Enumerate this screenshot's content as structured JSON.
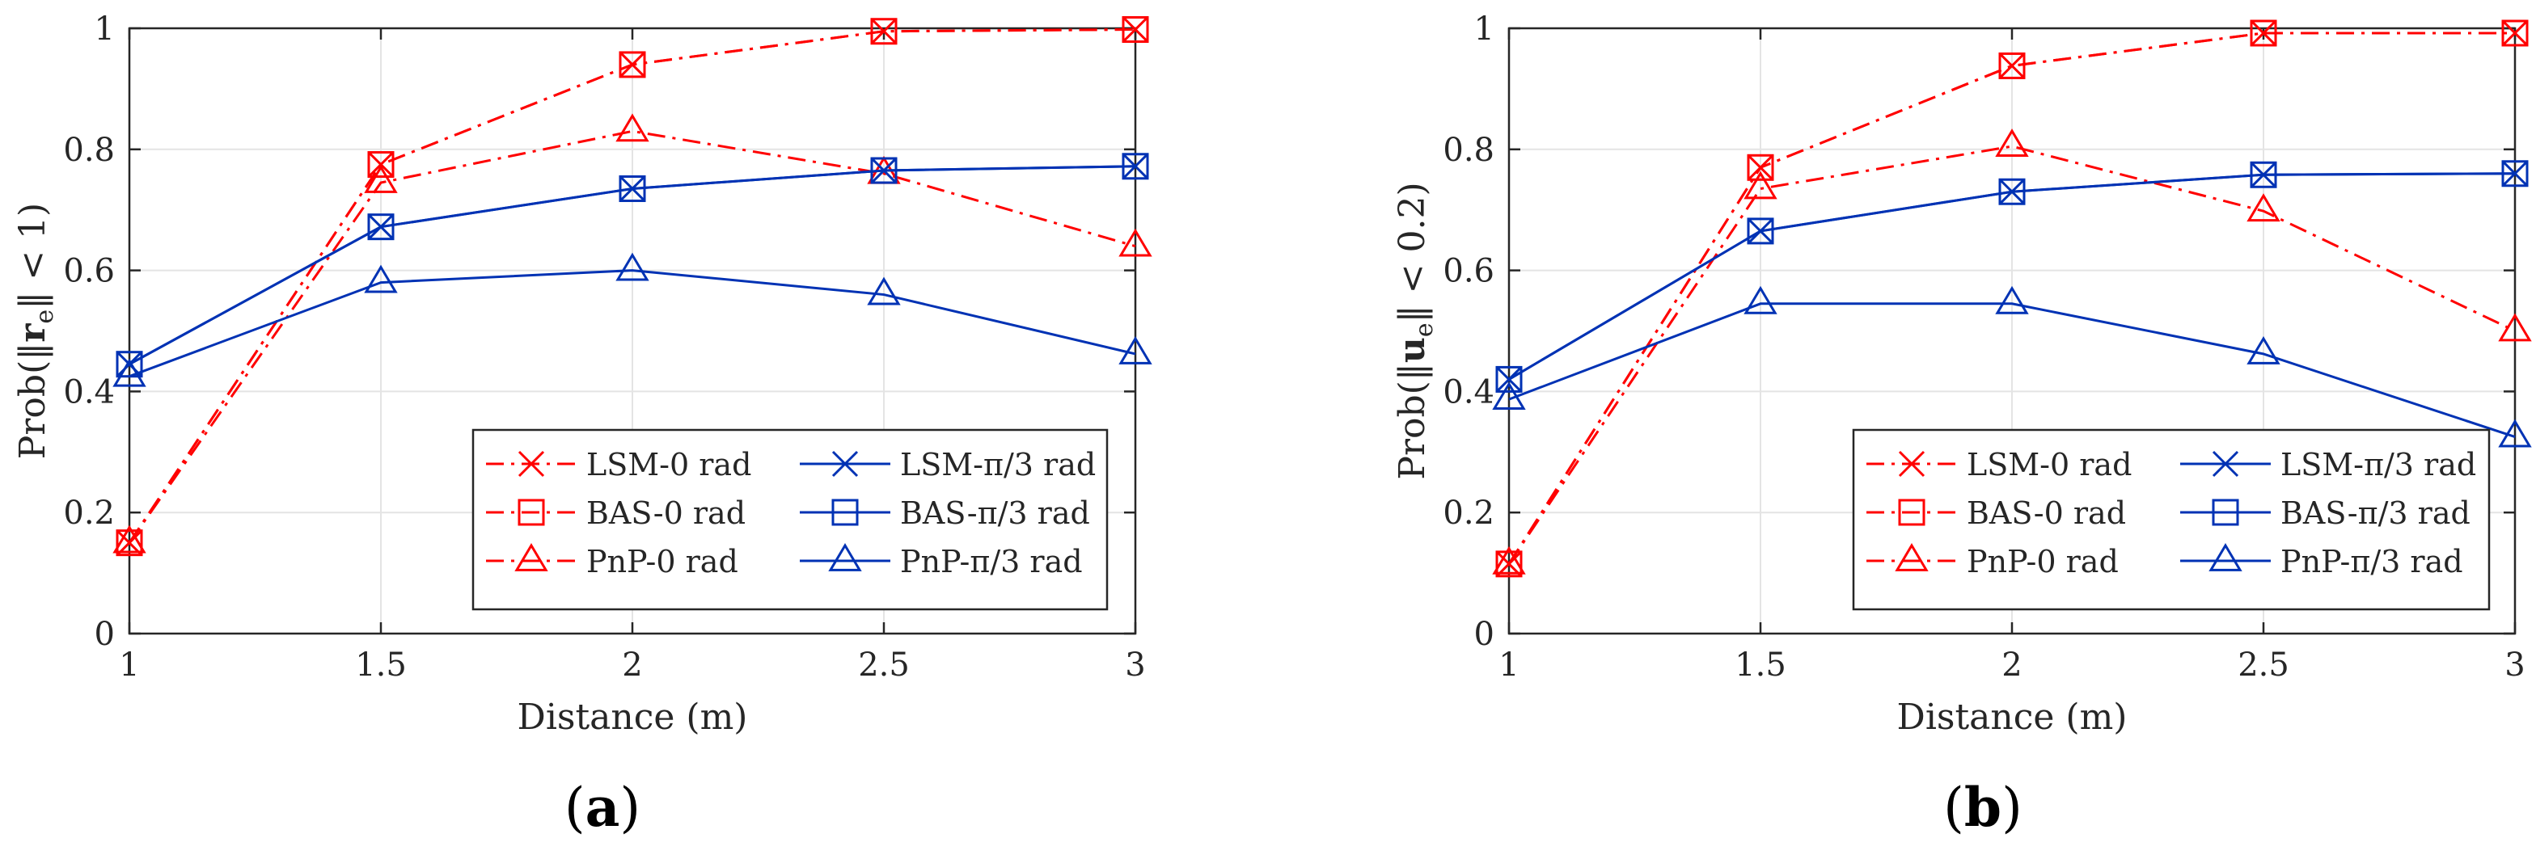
{
  "chart_data": [
    {
      "type": "line",
      "panel_label": "a",
      "title": "",
      "xlabel": "Distance (m)",
      "ylabel": "Prob(‖r_e‖ < 1)",
      "ylabel_parts": {
        "before": "Prob(‖",
        "bold": "r",
        "sub": "e",
        "after": "‖ < 1)"
      },
      "x": [
        1,
        1.5,
        2,
        2.5,
        3
      ],
      "xlim": [
        1,
        3
      ],
      "ylim": [
        0,
        1
      ],
      "x_ticks": [
        "1",
        "1.5",
        "2",
        "2.5",
        "3"
      ],
      "y_ticks": [
        "0",
        "0.2",
        "0.4",
        "0.6",
        "0.8",
        "1"
      ],
      "grid": true,
      "legend_position": "bottom-right",
      "series": [
        {
          "name": "LSM-0 rad",
          "color": "#ff0000",
          "dash": "dashdot",
          "marker": "x",
          "values": [
            0.15,
            0.775,
            0.94,
            0.995,
            0.998
          ]
        },
        {
          "name": "BAS-0 rad",
          "color": "#ff0000",
          "dash": "dashdot",
          "marker": "square",
          "values": [
            0.15,
            0.775,
            0.94,
            0.995,
            0.998
          ]
        },
        {
          "name": "PnP-0 rad",
          "color": "#ff0000",
          "dash": "dashdot",
          "marker": "triangle",
          "values": [
            0.15,
            0.745,
            0.83,
            0.76,
            0.64
          ]
        },
        {
          "name": "LSM-π/3 rad",
          "color": "#0032b4",
          "dash": "solid",
          "marker": "x",
          "values": [
            0.445,
            0.672,
            0.735,
            0.765,
            0.772
          ]
        },
        {
          "name": "BAS-π/3 rad",
          "color": "#0032b4",
          "dash": "solid",
          "marker": "square",
          "values": [
            0.445,
            0.672,
            0.735,
            0.765,
            0.772
          ]
        },
        {
          "name": "PnP-π/3 rad",
          "color": "#0032b4",
          "dash": "solid",
          "marker": "triangle",
          "values": [
            0.425,
            0.58,
            0.6,
            0.56,
            0.462
          ]
        }
      ]
    },
    {
      "type": "line",
      "panel_label": "b",
      "title": "",
      "xlabel": "Distance (m)",
      "ylabel": "Prob(‖u_e‖ < 0.2)",
      "ylabel_parts": {
        "before": "Prob(‖",
        "bold": "u",
        "sub": "e",
        "after": "‖ < 0.2)"
      },
      "x": [
        1,
        1.5,
        2,
        2.5,
        3
      ],
      "xlim": [
        1,
        3
      ],
      "ylim": [
        0,
        1
      ],
      "x_ticks": [
        "1",
        "1.5",
        "2",
        "2.5",
        "3"
      ],
      "y_ticks": [
        "0",
        "0.2",
        "0.4",
        "0.6",
        "0.8",
        "1"
      ],
      "grid": true,
      "legend_position": "bottom-right",
      "series": [
        {
          "name": "LSM-0 rad",
          "color": "#ff0000",
          "dash": "dashdot",
          "marker": "x",
          "values": [
            0.115,
            0.77,
            0.938,
            0.992,
            0.992
          ]
        },
        {
          "name": "BAS-0 rad",
          "color": "#ff0000",
          "dash": "dashdot",
          "marker": "square",
          "values": [
            0.115,
            0.77,
            0.938,
            0.992,
            0.992
          ]
        },
        {
          "name": "PnP-0 rad",
          "color": "#ff0000",
          "dash": "dashdot",
          "marker": "triangle",
          "values": [
            0.115,
            0.735,
            0.805,
            0.698,
            0.5
          ]
        },
        {
          "name": "LSM-π/3 rad",
          "color": "#0032b4",
          "dash": "solid",
          "marker": "x",
          "values": [
            0.42,
            0.665,
            0.73,
            0.758,
            0.76
          ]
        },
        {
          "name": "BAS-π/3 rad",
          "color": "#0032b4",
          "dash": "solid",
          "marker": "square",
          "values": [
            0.42,
            0.665,
            0.73,
            0.758,
            0.76
          ]
        },
        {
          "name": "PnP-π/3 rad",
          "color": "#0032b4",
          "dash": "solid",
          "marker": "triangle",
          "values": [
            0.387,
            0.545,
            0.545,
            0.462,
            0.325
          ]
        }
      ]
    }
  ]
}
